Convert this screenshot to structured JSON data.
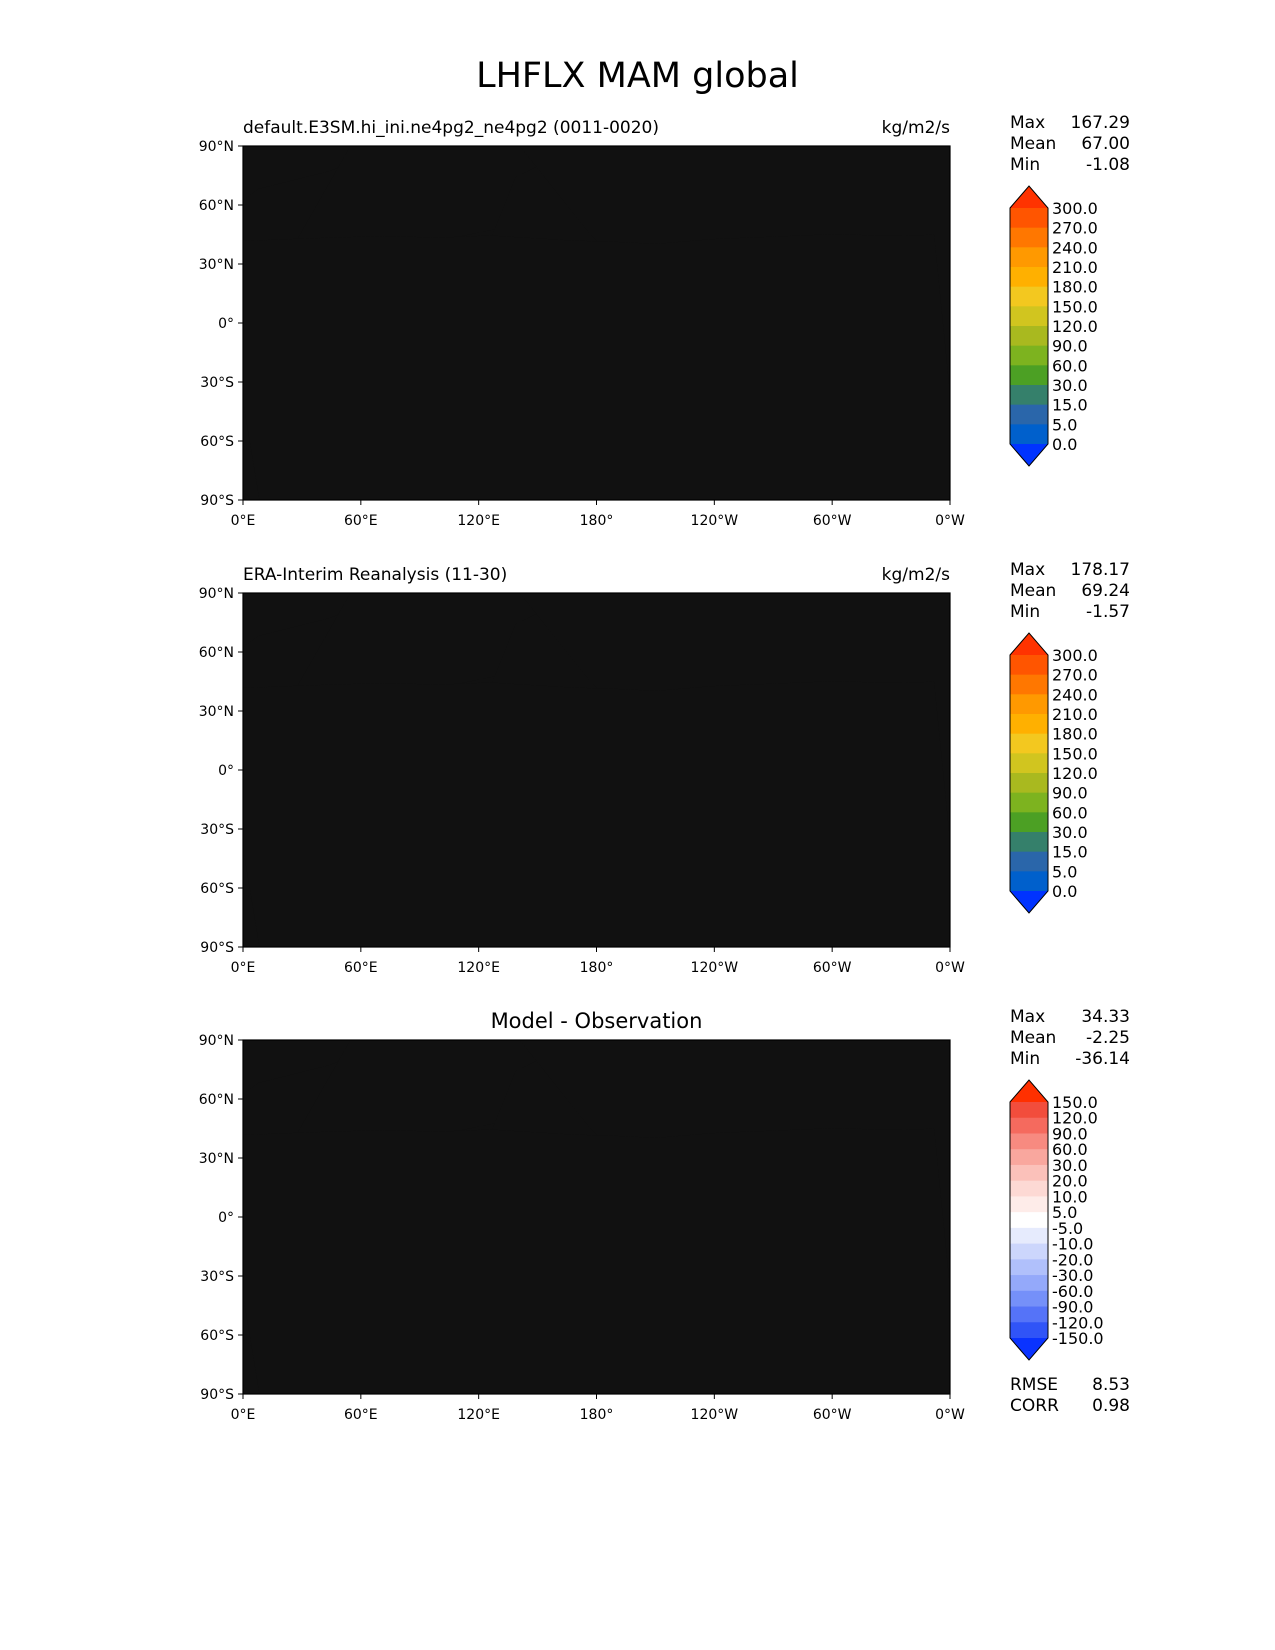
{
  "figure_title": "LHFLX MAM global",
  "lat_ticks": [
    "90°N",
    "60°N",
    "30°N",
    "0°",
    "30°S",
    "60°S",
    "90°S"
  ],
  "lon_ticks": [
    "0°E",
    "60°E",
    "120°E",
    "180°",
    "120°W",
    "60°W",
    "0°W"
  ],
  "panels": [
    {
      "left_title": "default.E3SM.hi_ini.ne4pg2_ne4pg2 (0011-0020)",
      "center_title": "",
      "units": "kg/m2/s",
      "stats": [
        {
          "label": "Max",
          "value": "167.29"
        },
        {
          "label": "Mean",
          "value": "67.00"
        },
        {
          "label": "Min",
          "value": "-1.08"
        }
      ],
      "colorbar_labels": [
        "300.0",
        "270.0",
        "240.0",
        "210.0",
        "180.0",
        "150.0",
        "120.0",
        "90.0",
        "60.0",
        "30.0",
        "15.0",
        "5.0",
        "0.0"
      ],
      "colorbar_colors": [
        "#ff3300",
        "#ff5500",
        "#ff7700",
        "#ff9900",
        "#ffb000",
        "#f3c81f",
        "#d1c51f",
        "#a9b91f",
        "#7db31f",
        "#4ca024",
        "#35806b",
        "#2a66aa",
        "#0060cc",
        "#0033ff"
      ]
    },
    {
      "left_title": "ERA-Interim Reanalysis (11-30)",
      "center_title": "",
      "units": "kg/m2/s",
      "stats": [
        {
          "label": "Max",
          "value": "178.17"
        },
        {
          "label": "Mean",
          "value": "69.24"
        },
        {
          "label": "Min",
          "value": "-1.57"
        }
      ],
      "colorbar_labels": [
        "300.0",
        "270.0",
        "240.0",
        "210.0",
        "180.0",
        "150.0",
        "120.0",
        "90.0",
        "60.0",
        "30.0",
        "15.0",
        "5.0",
        "0.0"
      ],
      "colorbar_colors": [
        "#ff3300",
        "#ff5500",
        "#ff7700",
        "#ff9900",
        "#ffb000",
        "#f3c81f",
        "#d1c51f",
        "#a9b91f",
        "#7db31f",
        "#4ca024",
        "#35806b",
        "#2a66aa",
        "#0060cc",
        "#0033ff"
      ]
    },
    {
      "left_title": "",
      "center_title": "Model - Observation",
      "units": "",
      "stats": [
        {
          "label": "Max",
          "value": "34.33"
        },
        {
          "label": "Mean",
          "value": "-2.25"
        },
        {
          "label": "Min",
          "value": "-36.14"
        }
      ],
      "colorbar_labels": [
        "150.0",
        "120.0",
        "90.0",
        "60.0",
        "30.0",
        "20.0",
        "10.0",
        "5.0",
        "-5.0",
        "-10.0",
        "-20.0",
        "-30.0",
        "-60.0",
        "-90.0",
        "-120.0",
        "-150.0"
      ],
      "colorbar_colors": [
        "#ff3000",
        "#f24d3c",
        "#f56a5e",
        "#f78a80",
        "#f9a79e",
        "#fbc1ba",
        "#fdd9d4",
        "#feece9",
        "#ffffff",
        "#e6ebfd",
        "#ccd6fc",
        "#b0c0fb",
        "#94a9fa",
        "#7590f9",
        "#5573f8",
        "#3054f7",
        "#0a33ff"
      ],
      "footer_stats": [
        {
          "label": "RMSE",
          "value": "8.53"
        },
        {
          "label": "CORR",
          "value": "0.98"
        }
      ]
    }
  ],
  "colors": {
    "ocean_polar": "#0060cc",
    "antarctic": "#0033ff",
    "midlat": "#4ca024",
    "subtropic": "#7db31f",
    "tropic": "#a9b91f",
    "tropic_high": "#d1c51f",
    "tropic_max": "#f3c81f",
    "teal": "#35806b",
    "steel": "#2a66aa",
    "diff_pos": "#f9a79e",
    "diff_pos_light": "#fdd9d4",
    "diff_neg": "#b0c0fb",
    "diff_neg_light": "#e6ebfd"
  }
}
